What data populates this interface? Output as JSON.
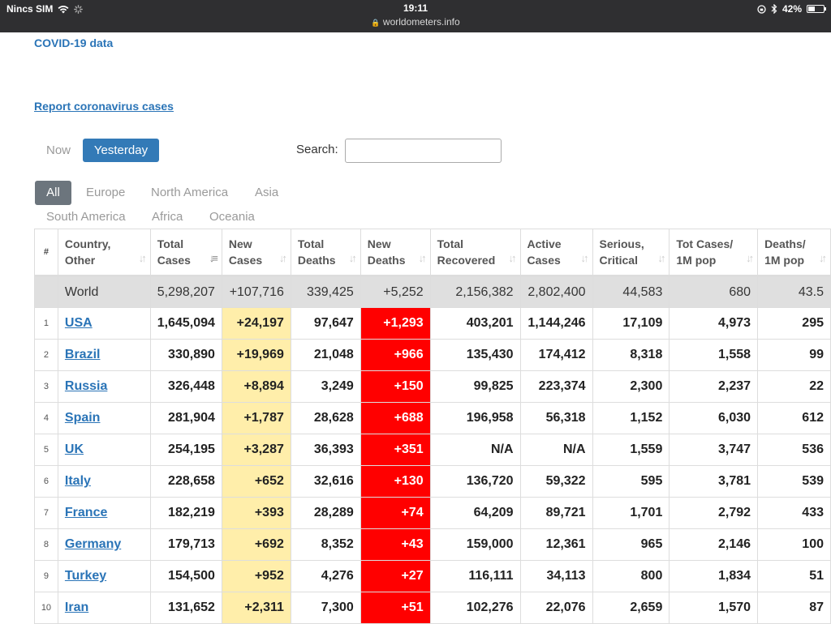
{
  "status_bar": {
    "carrier": "Nincs SIM",
    "time": "19:11",
    "url": "worldometers.info",
    "battery": "42%",
    "battery_level": 0.42
  },
  "page": {
    "title_link": "COVID-19 data",
    "report_link": "Report coronavirus cases",
    "toggle_now": "Now",
    "toggle_yesterday": "Yesterday",
    "search_label": "Search:",
    "search_value": ""
  },
  "regions": [
    "All",
    "Europe",
    "North America",
    "Asia",
    "South America",
    "Africa",
    "Oceania"
  ],
  "table": {
    "headers": [
      {
        "l1": "#",
        "l2": ""
      },
      {
        "l1": "Country,",
        "l2": "Other"
      },
      {
        "l1": "Total",
        "l2": "Cases"
      },
      {
        "l1": "New",
        "l2": "Cases"
      },
      {
        "l1": "Total",
        "l2": "Deaths"
      },
      {
        "l1": "New",
        "l2": "Deaths"
      },
      {
        "l1": "Total",
        "l2": "Recovered"
      },
      {
        "l1": "Active",
        "l2": "Cases"
      },
      {
        "l1": "Serious,",
        "l2": "Critical"
      },
      {
        "l1": "Tot Cases/",
        "l2": "1M pop"
      },
      {
        "l1": "Deaths/",
        "l2": "1M pop"
      }
    ],
    "world": [
      "",
      "World",
      "5,298,207",
      "+107,716",
      "339,425",
      "+5,252",
      "2,156,382",
      "2,802,400",
      "44,583",
      "680",
      "43.5"
    ],
    "rows": [
      [
        "1",
        "USA",
        "1,645,094",
        "+24,197",
        "97,647",
        "+1,293",
        "403,201",
        "1,144,246",
        "17,109",
        "4,973",
        "295"
      ],
      [
        "2",
        "Brazil",
        "330,890",
        "+19,969",
        "21,048",
        "+966",
        "135,430",
        "174,412",
        "8,318",
        "1,558",
        "99"
      ],
      [
        "3",
        "Russia",
        "326,448",
        "+8,894",
        "3,249",
        "+150",
        "99,825",
        "223,374",
        "2,300",
        "2,237",
        "22"
      ],
      [
        "4",
        "Spain",
        "281,904",
        "+1,787",
        "28,628",
        "+688",
        "196,958",
        "56,318",
        "1,152",
        "6,030",
        "612"
      ],
      [
        "5",
        "UK",
        "254,195",
        "+3,287",
        "36,393",
        "+351",
        "N/A",
        "N/A",
        "1,559",
        "3,747",
        "536"
      ],
      [
        "6",
        "Italy",
        "228,658",
        "+652",
        "32,616",
        "+130",
        "136,720",
        "59,322",
        "595",
        "3,781",
        "539"
      ],
      [
        "7",
        "France",
        "182,219",
        "+393",
        "28,289",
        "+74",
        "64,209",
        "89,721",
        "1,701",
        "2,792",
        "433"
      ],
      [
        "8",
        "Germany",
        "179,713",
        "+692",
        "8,352",
        "+43",
        "159,000",
        "12,361",
        "965",
        "2,146",
        "100"
      ],
      [
        "9",
        "Turkey",
        "154,500",
        "+952",
        "4,276",
        "+27",
        "116,111",
        "34,113",
        "800",
        "1,834",
        "51"
      ],
      [
        "10",
        "Iran",
        "131,652",
        "+2,311",
        "7,300",
        "+51",
        "102,276",
        "22,076",
        "2,659",
        "1,570",
        "87"
      ]
    ]
  },
  "colors": {
    "link": "#2a74b7",
    "active_toggle": "#337ab7",
    "new_cases_bg": "#ffeeaa",
    "new_deaths_bg": "#ff0000",
    "world_row_bg": "#dfdfdf"
  }
}
